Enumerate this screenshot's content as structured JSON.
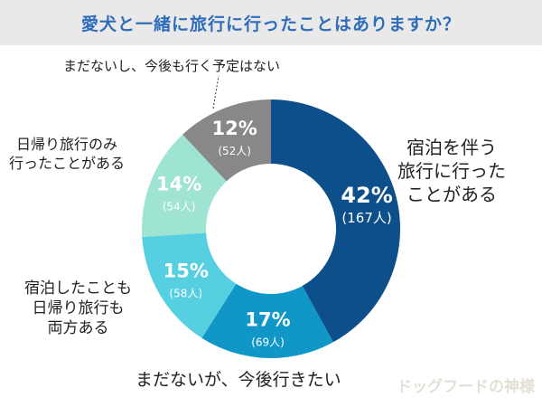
{
  "chart_data": {
    "type": "pie",
    "title": "愛犬と一緒に旅行に行ったことはありますか？",
    "slices": [
      {
        "label": "宿泊を伴う旅行に行ったことがある",
        "label_lines": [
          "宿泊を伴う",
          "旅行に行った",
          "ことがある"
        ],
        "percent": 42,
        "count_label": "(167人)",
        "percent_label": "42%",
        "color": "#0c4f8b"
      },
      {
        "label": "まだないが、今後行きたい",
        "label_lines": [
          "まだないが、今後行きたい"
        ],
        "percent": 17,
        "count_label": "(69人)",
        "percent_label": "17%",
        "color": "#1196c8"
      },
      {
        "label": "宿泊したことも日帰り旅行も両方ある",
        "label_lines": [
          "宿泊したことも",
          "日帰り旅行も",
          "両方ある"
        ],
        "percent": 15,
        "count_label": "(58人)",
        "percent_label": "15%",
        "color": "#56cfe0"
      },
      {
        "label": "日帰り旅行のみ行ったことがある",
        "label_lines": [
          "日帰り旅行のみ",
          "行ったことがある"
        ],
        "percent": 14,
        "count_label": "(54人)",
        "percent_label": "14%",
        "color": "#9fe3d3"
      },
      {
        "label": "まだないし、今後も行く予定はない",
        "label_lines": [
          "まだないし、今後も行く予定はない"
        ],
        "percent": 12,
        "count_label": "(52人)",
        "percent_label": "12%",
        "color": "#888888"
      }
    ],
    "start": "top",
    "direction": "clockwise",
    "donut": true
  },
  "watermark": "ドッグフードの神様"
}
